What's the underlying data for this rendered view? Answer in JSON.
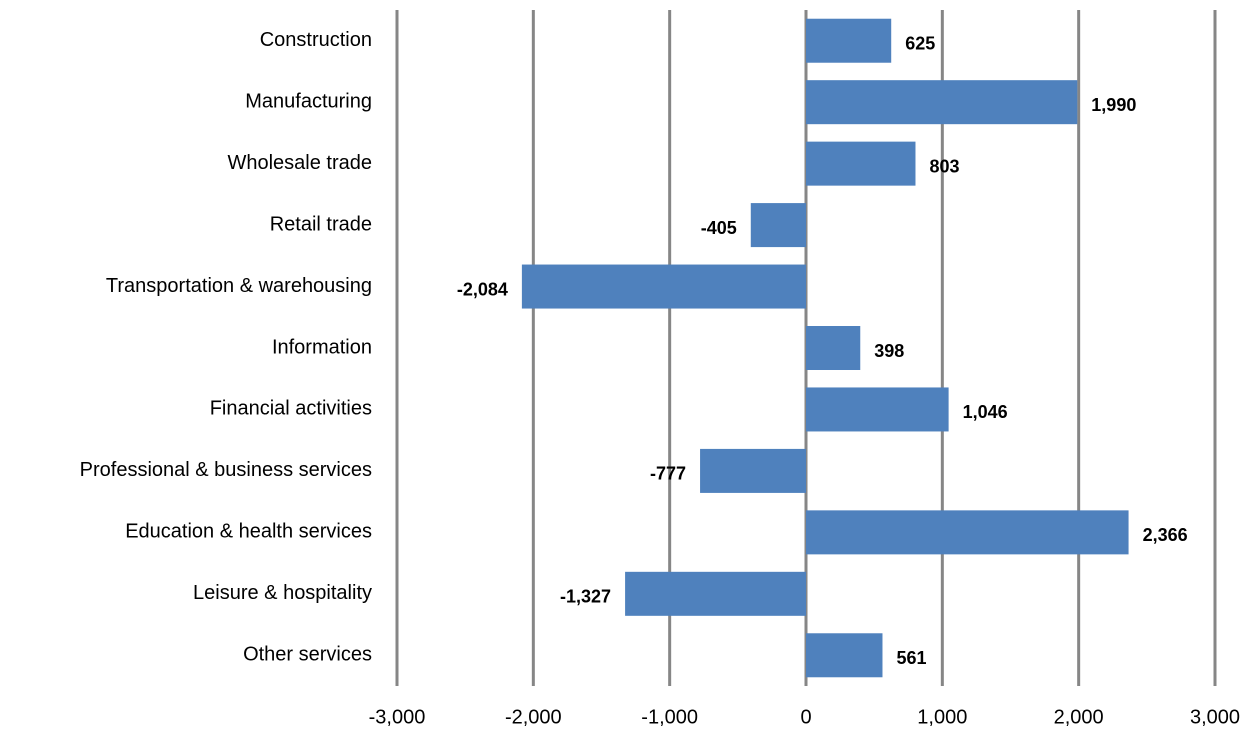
{
  "chart_data": {
    "type": "bar",
    "orientation": "horizontal",
    "categories": [
      "Construction",
      "Manufacturing",
      "Wholesale trade",
      "Retail trade",
      "Transportation & warehousing",
      "Information",
      "Financial activities",
      "Professional & business services",
      "Education & health services",
      "Leisure & hospitality",
      "Other services"
    ],
    "values": [
      625,
      1990,
      803,
      -405,
      -2084,
      398,
      1046,
      -777,
      2366,
      -1327,
      561
    ],
    "value_labels": [
      "625",
      "1,990",
      "803",
      "-405",
      "-2,084",
      "398",
      "1,046",
      "-777",
      "2,366",
      "-1,327",
      "561"
    ],
    "color": "#4f81bd",
    "xlim": [
      -3000,
      3000
    ],
    "xticks": [
      {
        "value": -3000,
        "label": "-3,000"
      },
      {
        "value": -2000,
        "label": "-2,000"
      },
      {
        "value": -1000,
        "label": "-1,000"
      },
      0,
      {
        "value": 1000,
        "label": "1,000"
      },
      {
        "value": 2000,
        "label": "2,000"
      },
      {
        "value": 3000,
        "label": "3,000"
      }
    ],
    "grid": true
  }
}
